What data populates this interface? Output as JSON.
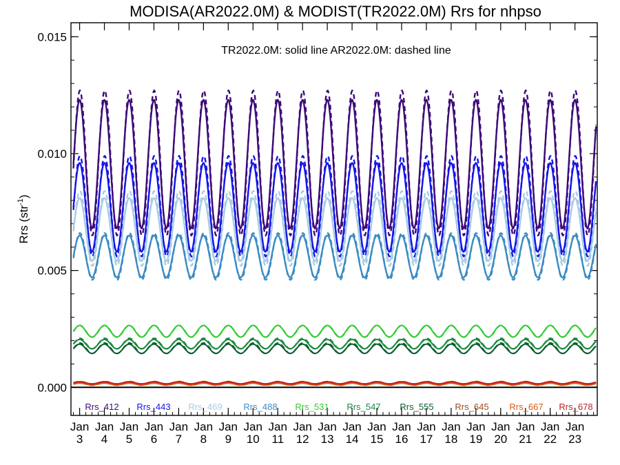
{
  "chart_data": {
    "type": "line",
    "title": "MODISA(AR2022.0M) & MODIST(TR2022.0M)  Rrs for nhpso",
    "annotation": "TR2022.0M: solid line   AR2022.0M: dashed line",
    "ylabel": "Rrs (str",
    "ylabel_superscript": "-1",
    "ylabel_close": ")",
    "ylim": [
      -0.0012,
      0.0156
    ],
    "xlim": [
      2002.65,
      2023.9
    ],
    "yticks": [
      {
        "value": 0.0,
        "label": "0.000"
      },
      {
        "value": 0.005,
        "label": "0.005"
      },
      {
        "value": 0.01,
        "label": "0.010"
      },
      {
        "value": 0.015,
        "label": "0.015"
      }
    ],
    "xticks": [
      {
        "value": 2003,
        "month": "Jan",
        "year": "3"
      },
      {
        "value": 2004,
        "month": "Jan",
        "year": "4"
      },
      {
        "value": 2005,
        "month": "Jan",
        "year": "5"
      },
      {
        "value": 2006,
        "month": "Jan",
        "year": "6"
      },
      {
        "value": 2007,
        "month": "Jan",
        "year": "7"
      },
      {
        "value": 2008,
        "month": "Jan",
        "year": "8"
      },
      {
        "value": 2009,
        "month": "Jan",
        "year": "9"
      },
      {
        "value": 2010,
        "month": "Jan",
        "year": "10"
      },
      {
        "value": 2011,
        "month": "Jan",
        "year": "11"
      },
      {
        "value": 2012,
        "month": "Jan",
        "year": "12"
      },
      {
        "value": 2013,
        "month": "Jan",
        "year": "13"
      },
      {
        "value": 2014,
        "month": "Jan",
        "year": "14"
      },
      {
        "value": 2015,
        "month": "Jan",
        "year": "15"
      },
      {
        "value": 2016,
        "month": "Jan",
        "year": "16"
      },
      {
        "value": 2017,
        "month": "Jan",
        "year": "17"
      },
      {
        "value": 2018,
        "month": "Jan",
        "year": "18"
      },
      {
        "value": 2019,
        "month": "Jan",
        "year": "19"
      },
      {
        "value": 2020,
        "month": "Jan",
        "year": "20"
      },
      {
        "value": 2021,
        "month": "Jan",
        "year": "21"
      },
      {
        "value": 2022,
        "month": "Jan",
        "year": "22"
      },
      {
        "value": 2023,
        "month": "Jan",
        "year": "23"
      }
    ],
    "zero_line": 0.0,
    "legend_placement": "bottom inside plot",
    "seasonal_model": "annual cycle, maximum in January, minimum in July",
    "series": [
      {
        "name": "Rrs_412",
        "color": "#3c0a78",
        "solid": {
          "winter_max": 0.0123,
          "summer_min": 0.0068
        },
        "dashed": {
          "winter_max": 0.0127,
          "summer_min": 0.0065
        }
      },
      {
        "name": "Rrs_443",
        "color": "#1515e8",
        "solid": {
          "winter_max": 0.0096,
          "summer_min": 0.0058
        },
        "dashed": {
          "winter_max": 0.0099,
          "summer_min": 0.0056
        }
      },
      {
        "name": "Rrs_469",
        "color": "#a8cce4",
        "solid": {
          "winter_max": 0.0081,
          "summer_min": 0.0054
        },
        "dashed": {
          "winter_max": 0.0084,
          "summer_min": 0.0052
        }
      },
      {
        "name": "Rrs_488",
        "color": "#3a8cc4",
        "solid": {
          "winter_max": 0.0065,
          "summer_min": 0.0047
        },
        "dashed": {
          "winter_max": 0.0066,
          "summer_min": 0.0046
        }
      },
      {
        "name": "Rrs_531",
        "color": "#33cc33",
        "solid": {
          "winter_max": 0.00265,
          "summer_min": 0.00215
        },
        "dashed": {
          "winter_max": 0.00265,
          "summer_min": 0.00215
        }
      },
      {
        "name": "Rrs_547",
        "color": "#1a8a40",
        "solid": {
          "winter_max": 0.00205,
          "summer_min": 0.00165
        },
        "dashed": {
          "winter_max": 0.0021,
          "summer_min": 0.00165
        }
      },
      {
        "name": "Rrs_555",
        "color": "#0e5e30",
        "solid": {
          "winter_max": 0.00185,
          "summer_min": 0.00145
        },
        "dashed": {
          "winter_max": 0.0019,
          "summer_min": 0.00145
        }
      },
      {
        "name": "Rrs_645",
        "color": "#a04a1a",
        "solid": {
          "winter_max": 0.00022,
          "summer_min": 0.00012
        },
        "dashed": {
          "winter_max": 0.00023,
          "summer_min": 0.00011
        }
      },
      {
        "name": "Rrs_667",
        "color": "#d85a10",
        "solid": {
          "winter_max": 0.00018,
          "summer_min": 0.0001
        },
        "dashed": {
          "winter_max": 0.00019,
          "summer_min": 9e-05
        }
      },
      {
        "name": "Rrs_678",
        "color": "#c42020",
        "solid": {
          "winter_max": 0.00024,
          "summer_min": 0.00015
        },
        "dashed": {
          "winter_max": 0.00025,
          "summer_min": 0.00014
        }
      }
    ]
  }
}
